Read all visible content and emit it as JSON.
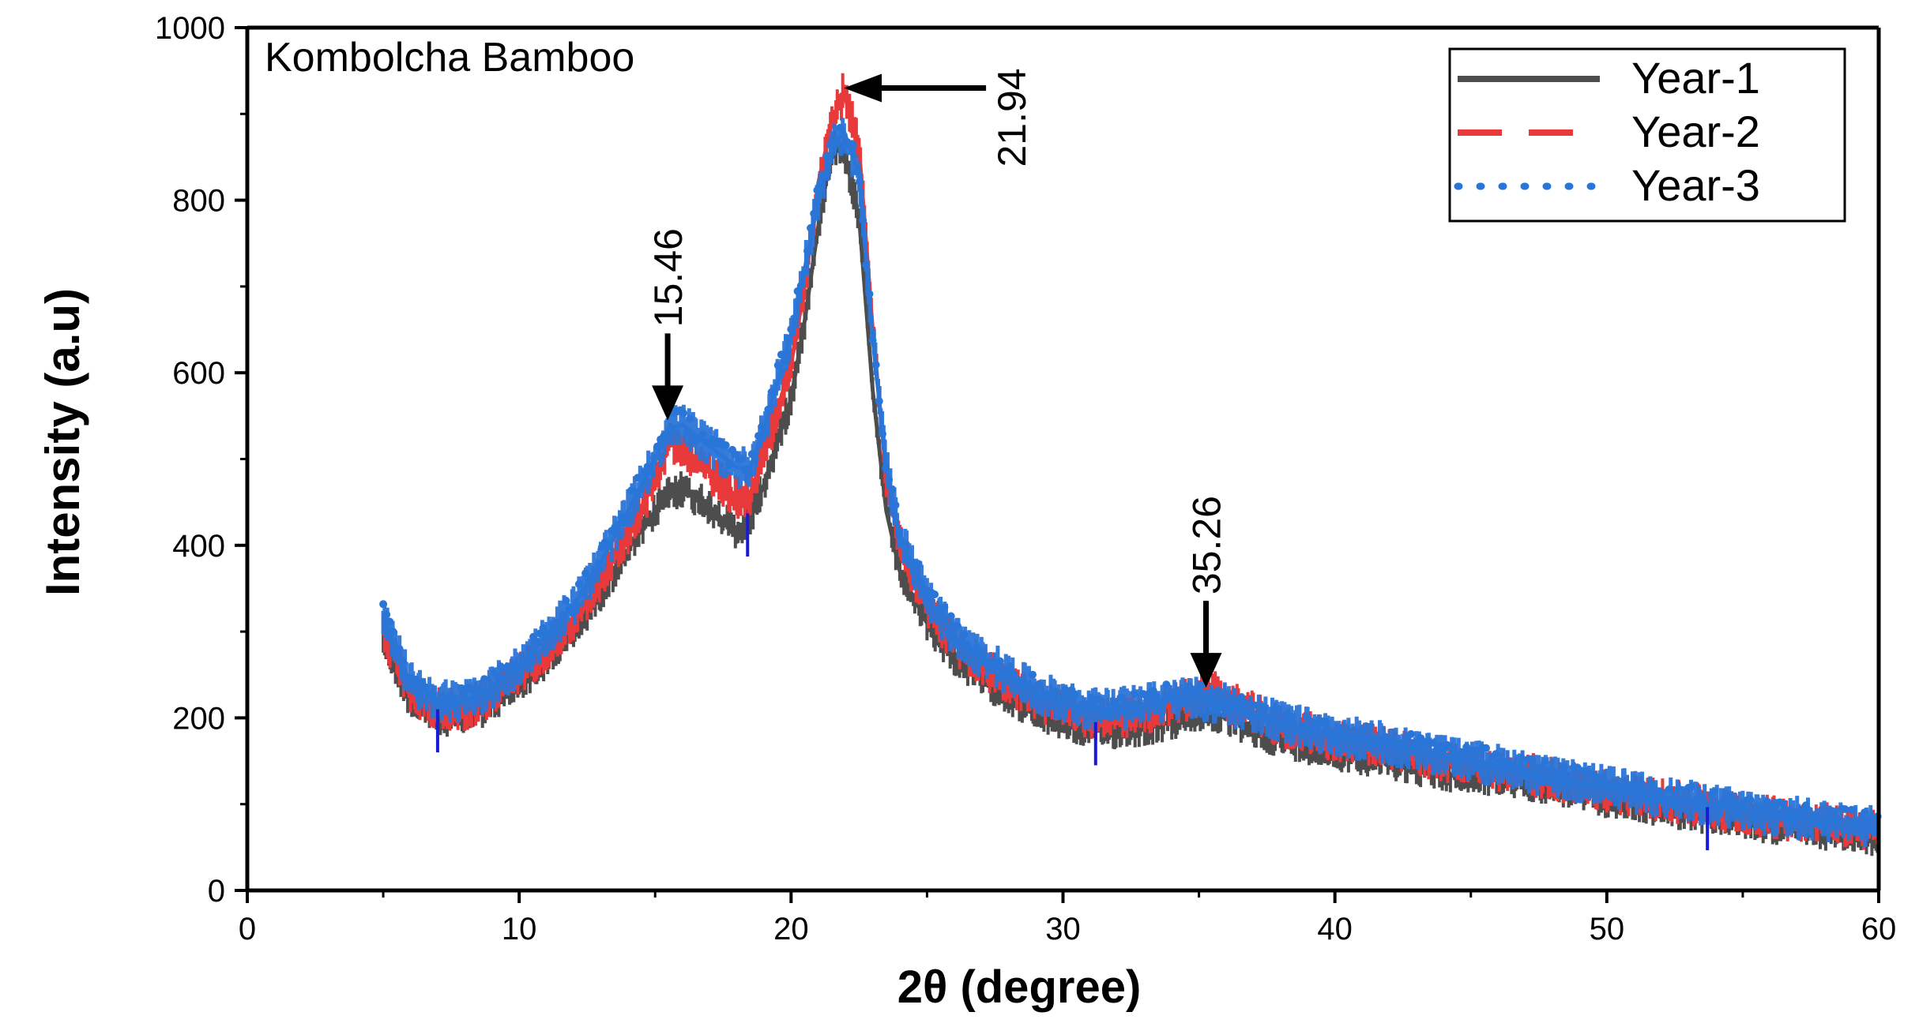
{
  "chart_data": {
    "type": "line",
    "title": "Kombolcha Bamboo",
    "xlabel": "2θ (degree)",
    "ylabel": "Intensity (a.u)",
    "xlim": [
      0,
      60
    ],
    "ylim": [
      0,
      1000
    ],
    "xticks": [
      0,
      10,
      20,
      30,
      40,
      50,
      60
    ],
    "yticks": [
      0,
      200,
      400,
      600,
      800,
      1000
    ],
    "x_tick_labels": [
      "0",
      "10",
      "20",
      "30",
      "40",
      "50",
      "60"
    ],
    "y_tick_labels": [
      "0",
      "200",
      "400",
      "600",
      "800",
      "1000"
    ],
    "legend_position": "top-right",
    "x": [
      5,
      6,
      7,
      8,
      9,
      10,
      11,
      12,
      13,
      14,
      15,
      15.5,
      16,
      17,
      18,
      18.5,
      19,
      20,
      20.5,
      21,
      21.5,
      21.94,
      22.5,
      23,
      23.5,
      24,
      25,
      26,
      27,
      28,
      29,
      30,
      31,
      32,
      33,
      34,
      35,
      35.26,
      36,
      37,
      38,
      40,
      42,
      44,
      46,
      48,
      50,
      52,
      54,
      56,
      58,
      60
    ],
    "series": [
      {
        "name": "Year-1",
        "color": "#4d4d4d",
        "style": "solid",
        "values": [
          290,
          220,
          200,
          200,
          215,
          240,
          265,
          300,
          345,
          395,
          440,
          460,
          465,
          445,
          415,
          430,
          470,
          570,
          660,
          770,
          860,
          860,
          780,
          580,
          440,
          370,
          310,
          270,
          245,
          225,
          205,
          195,
          185,
          185,
          188,
          195,
          205,
          205,
          200,
          185,
          175,
          160,
          150,
          135,
          130,
          120,
          105,
          95,
          85,
          75,
          68,
          60
        ]
      },
      {
        "name": "Year-2",
        "color": "#e8393b",
        "style": "dashed",
        "values": [
          300,
          230,
          210,
          210,
          225,
          250,
          280,
          315,
          360,
          415,
          475,
          520,
          515,
          485,
          455,
          460,
          505,
          610,
          700,
          820,
          890,
          925,
          860,
          650,
          480,
          400,
          330,
          285,
          260,
          240,
          220,
          210,
          200,
          200,
          205,
          215,
          225,
          235,
          220,
          205,
          190,
          175,
          165,
          150,
          140,
          130,
          115,
          105,
          95,
          85,
          78,
          70
        ]
      },
      {
        "name": "Year-3",
        "color": "#2a75d8",
        "style": "dotted",
        "values": [
          315,
          240,
          220,
          220,
          235,
          260,
          295,
          330,
          380,
          440,
          500,
          535,
          540,
          515,
          490,
          490,
          535,
          645,
          720,
          800,
          860,
          880,
          830,
          640,
          490,
          410,
          340,
          295,
          270,
          250,
          230,
          220,
          210,
          210,
          215,
          222,
          222,
          220,
          215,
          205,
          195,
          180,
          170,
          155,
          145,
          130,
          120,
          108,
          98,
          88,
          80,
          72
        ]
      }
    ],
    "annotations": [
      {
        "label": "15.46",
        "x": 15.46,
        "y": 545,
        "arrow": "down"
      },
      {
        "label": "21.94",
        "x": 21.94,
        "y": 930,
        "arrow": "left"
      },
      {
        "label": "35.26",
        "x": 35.26,
        "y": 235,
        "arrow": "down"
      }
    ],
    "blue_markers_x": [
      7.0,
      18.4,
      31.2,
      53.7
    ]
  }
}
